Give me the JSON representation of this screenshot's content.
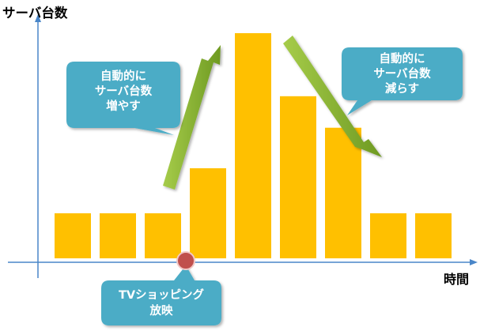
{
  "chart_data": {
    "type": "bar",
    "ylabel": "サーバ台数",
    "xlabel": "時間",
    "values": [
      1,
      1,
      1,
      2,
      5,
      3.6,
      2.9,
      1,
      1
    ],
    "grid": false,
    "legend": "none"
  },
  "annotations": {
    "increase": "自動的に\nサーバ台数\n増やす",
    "decrease": "自動的に\nサーバ台数\n減らす",
    "event": "TVショッピング\n放映"
  },
  "colors": {
    "bar": "#ffc000",
    "axis": "#4a86c8",
    "bubble": "#4bacc6",
    "arrow": "#8dba35",
    "marker": "#c0504d"
  }
}
